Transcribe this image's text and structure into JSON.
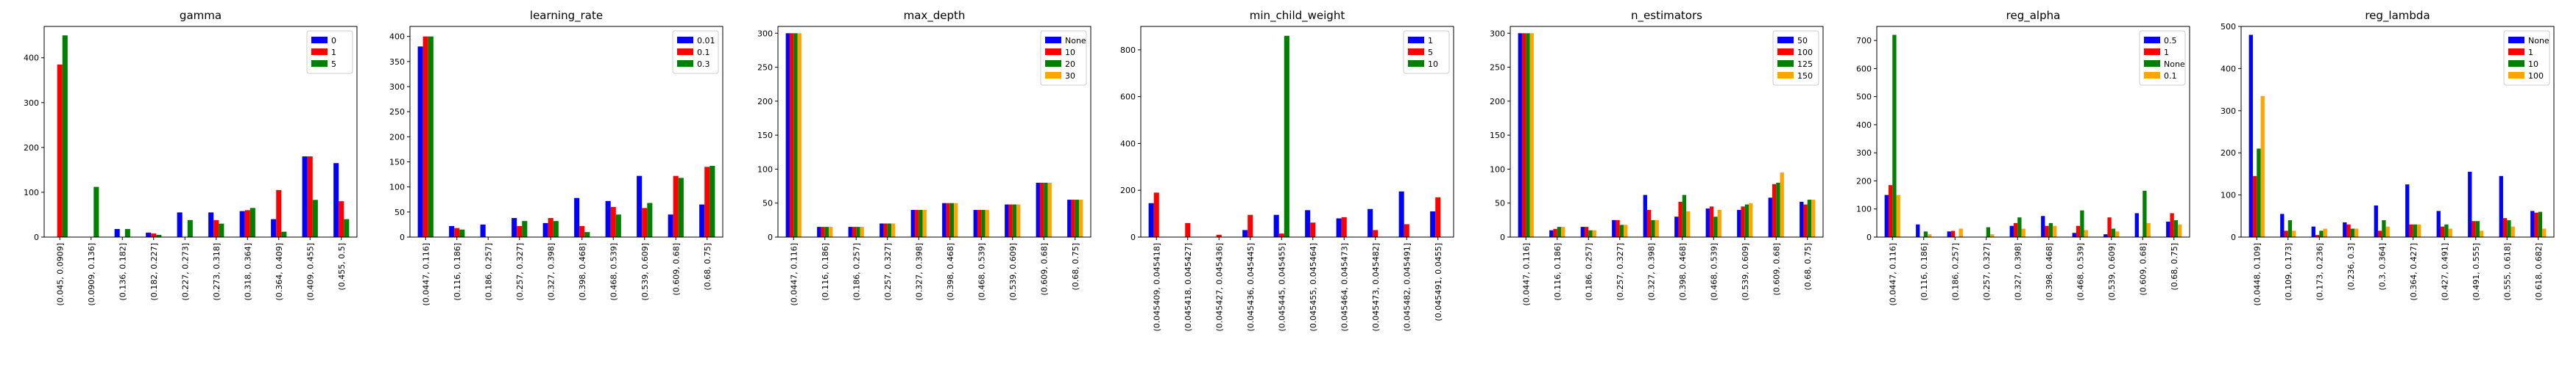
{
  "chart_data": [
    {
      "type": "bar",
      "title": "gamma",
      "ylim": [
        0,
        470
      ],
      "yticks": [
        0,
        100,
        200,
        300,
        400
      ],
      "legend_position": "top-right",
      "categories": [
        "(0.045, 0.0909]",
        "(0.0909, 0.136]",
        "(0.136, 0.182]",
        "(0.182, 0.227]",
        "(0.227, 0.273]",
        "(0.273, 0.318]",
        "(0.318, 0.364]",
        "(0.364, 0.409]",
        "(0.409, 0.455]",
        "(0.455, 0.5]"
      ],
      "series": [
        {
          "name": "0",
          "color": "#0000ff",
          "values": [
            null,
            null,
            18,
            10,
            55,
            55,
            58,
            40,
            180,
            165
          ]
        },
        {
          "name": "1",
          "color": "#ff0000",
          "values": [
            385,
            null,
            null,
            8,
            null,
            38,
            60,
            105,
            180,
            80
          ]
        },
        {
          "name": "5",
          "color": "#008000",
          "values": [
            450,
            112,
            18,
            5,
            38,
            30,
            65,
            12,
            83,
            40
          ]
        }
      ]
    },
    {
      "type": "bar",
      "title": "learning_rate",
      "ylim": [
        0,
        420
      ],
      "yticks": [
        0,
        50,
        100,
        150,
        200,
        250,
        300,
        350,
        400
      ],
      "legend_position": "top-right",
      "categories": [
        "(0.0447, 0.116]",
        "(0.116, 0.186]",
        "(0.186, 0.257]",
        "(0.257, 0.327]",
        "(0.327, 0.398]",
        "(0.398, 0.468]",
        "(0.468, 0.539]",
        "(0.539, 0.609]",
        "(0.609, 0.68]",
        "(0.68, 0.75]"
      ],
      "series": [
        {
          "name": "0.01",
          "color": "#0000ff",
          "values": [
            380,
            22,
            25,
            38,
            28,
            78,
            72,
            122,
            45,
            65
          ]
        },
        {
          "name": "0.1",
          "color": "#ff0000",
          "values": [
            400,
            18,
            null,
            22,
            38,
            22,
            60,
            58,
            122,
            140
          ]
        },
        {
          "name": "0.3",
          "color": "#008000",
          "values": [
            400,
            15,
            null,
            32,
            32,
            10,
            45,
            68,
            118,
            142
          ]
        }
      ]
    },
    {
      "type": "bar",
      "title": "max_depth",
      "ylim": [
        0,
        310
      ],
      "yticks": [
        0,
        50,
        100,
        150,
        200,
        250,
        300
      ],
      "legend_position": "top-right",
      "categories": [
        "(0.0447, 0.116]",
        "(0.116, 0.186]",
        "(0.186, 0.257]",
        "(0.257, 0.327]",
        "(0.327, 0.398]",
        "(0.398, 0.468]",
        "(0.468, 0.539]",
        "(0.539, 0.609]",
        "(0.609, 0.68]",
        "(0.68, 0.75]"
      ],
      "series": [
        {
          "name": "None",
          "color": "#0000ff",
          "values": [
            300,
            15,
            15,
            20,
            40,
            50,
            40,
            48,
            80,
            55
          ]
        },
        {
          "name": "10",
          "color": "#ff0000",
          "values": [
            300,
            15,
            15,
            20,
            40,
            50,
            40,
            48,
            80,
            55
          ]
        },
        {
          "name": "20",
          "color": "#008000",
          "values": [
            300,
            15,
            15,
            20,
            40,
            50,
            40,
            48,
            80,
            55
          ]
        },
        {
          "name": "30",
          "color": "#ffa500",
          "values": [
            300,
            15,
            15,
            20,
            40,
            50,
            40,
            48,
            80,
            55
          ]
        }
      ]
    },
    {
      "type": "bar",
      "title": "min_child_weight",
      "ylim": [
        0,
        900
      ],
      "yticks": [
        0,
        200,
        400,
        600,
        800
      ],
      "legend_position": "top-right",
      "categories": [
        "(0.045409, 0.045418]",
        "(0.045418, 0.045427]",
        "(0.045427, 0.045436]",
        "(0.045436, 0.045445]",
        "(0.045445, 0.045455]",
        "(0.045455, 0.045464]",
        "(0.045464, 0.045473]",
        "(0.045473, 0.045482]",
        "(0.045482, 0.045491]",
        "(0.045491, 0.0455]"
      ],
      "series": [
        {
          "name": "1",
          "color": "#0000ff",
          "values": [
            145,
            null,
            null,
            30,
            95,
            115,
            80,
            120,
            195,
            110
          ]
        },
        {
          "name": "5",
          "color": "#ff0000",
          "values": [
            190,
            60,
            10,
            95,
            15,
            62,
            85,
            30,
            55,
            170
          ]
        },
        {
          "name": "10",
          "color": "#008000",
          "values": [
            null,
            null,
            null,
            null,
            860,
            null,
            null,
            null,
            null,
            null
          ]
        }
      ]
    },
    {
      "type": "bar",
      "title": "n_estimators",
      "ylim": [
        0,
        310
      ],
      "yticks": [
        0,
        50,
        100,
        150,
        200,
        250,
        300
      ],
      "legend_position": "top-right",
      "categories": [
        "(0.0447, 0.116]",
        "(0.116, 0.186]",
        "(0.186, 0.257]",
        "(0.257, 0.327]",
        "(0.327, 0.398]",
        "(0.398, 0.468]",
        "(0.468, 0.539]",
        "(0.539, 0.609]",
        "(0.609, 0.68]",
        "(0.68, 0.75]"
      ],
      "series": [
        {
          "name": "50",
          "color": "#0000ff",
          "values": [
            300,
            10,
            15,
            25,
            62,
            30,
            42,
            40,
            58,
            52
          ]
        },
        {
          "name": "100",
          "color": "#ff0000",
          "values": [
            300,
            12,
            15,
            25,
            40,
            52,
            45,
            45,
            78,
            48
          ]
        },
        {
          "name": "125",
          "color": "#008000",
          "values": [
            300,
            15,
            10,
            18,
            25,
            62,
            30,
            48,
            80,
            55
          ]
        },
        {
          "name": "150",
          "color": "#ffa500",
          "values": [
            300,
            15,
            10,
            18,
            25,
            38,
            40,
            50,
            95,
            55
          ]
        }
      ]
    },
    {
      "type": "bar",
      "title": "reg_alpha",
      "ylim": [
        0,
        750
      ],
      "yticks": [
        0,
        100,
        200,
        300,
        400,
        500,
        600,
        700
      ],
      "legend_position": "top-right",
      "categories": [
        "(0.0447, 0.116]",
        "(0.116, 0.186]",
        "(0.186, 0.257]",
        "(0.257, 0.327]",
        "(0.327, 0.398]",
        "(0.398, 0.468]",
        "(0.468, 0.539]",
        "(0.539, 0.609]",
        "(0.609, 0.68]",
        "(0.68, 0.75]"
      ],
      "series": [
        {
          "name": "0.5",
          "color": "#0000ff",
          "values": [
            150,
            45,
            20,
            null,
            40,
            75,
            15,
            10,
            85,
            55
          ]
        },
        {
          "name": "1",
          "color": "#ff0000",
          "values": [
            185,
            null,
            22,
            null,
            50,
            40,
            40,
            70,
            null,
            85
          ]
        },
        {
          "name": "None",
          "color": "#008000",
          "values": [
            720,
            20,
            null,
            35,
            70,
            50,
            95,
            30,
            165,
            60
          ]
        },
        {
          "name": "0.1",
          "color": "#ffa500",
          "values": [
            150,
            10,
            30,
            10,
            30,
            40,
            25,
            20,
            50,
            45
          ]
        }
      ]
    },
    {
      "type": "bar",
      "title": "reg_lambda",
      "ylim": [
        0,
        500
      ],
      "yticks": [
        0,
        100,
        200,
        300,
        400,
        500
      ],
      "legend_position": "top-right",
      "categories": [
        "(0.0448, 0.109]",
        "(0.109, 0.173]",
        "(0.173, 0.236]",
        "(0.236, 0.3]",
        "(0.3, 0.364]",
        "(0.364, 0.427]",
        "(0.427, 0.491]",
        "(0.491, 0.555]",
        "(0.555, 0.618]",
        "(0.618, 0.682]"
      ],
      "series": [
        {
          "name": "None",
          "color": "#0000ff",
          "values": [
            480,
            55,
            25,
            35,
            75,
            125,
            62,
            155,
            145,
            62
          ]
        },
        {
          "name": "1",
          "color": "#ff0000",
          "values": [
            145,
            15,
            5,
            30,
            15,
            30,
            25,
            38,
            45,
            58
          ]
        },
        {
          "name": "10",
          "color": "#008000",
          "values": [
            210,
            40,
            15,
            20,
            40,
            30,
            30,
            38,
            40,
            60
          ]
        },
        {
          "name": "100",
          "color": "#ffa500",
          "values": [
            335,
            15,
            20,
            20,
            25,
            30,
            20,
            15,
            25,
            20
          ]
        }
      ]
    }
  ]
}
